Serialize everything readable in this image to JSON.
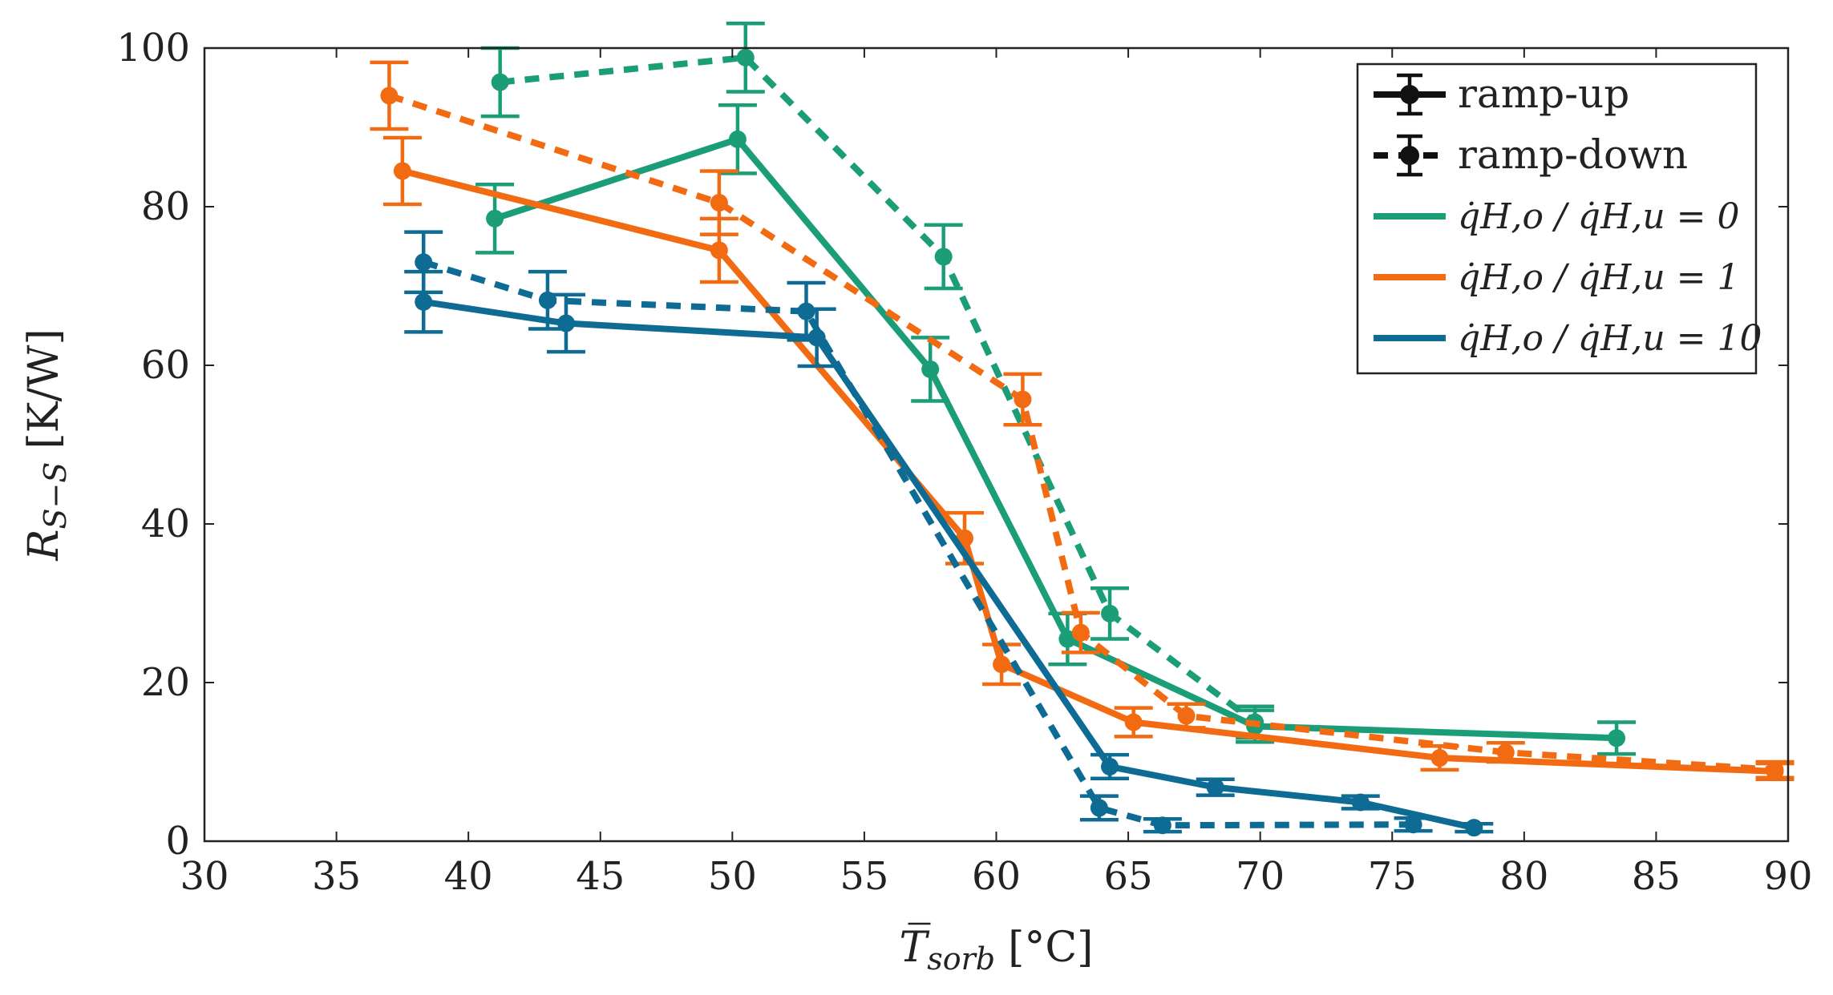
{
  "chart_data": {
    "type": "line",
    "title": "",
    "xlabel": {
      "base": "T",
      "sub": "sorb",
      "unit": "[°C]"
    },
    "ylabel": {
      "base": "R",
      "sub": "S−S",
      "unit": "[K/W]"
    },
    "xlim": [
      30,
      90
    ],
    "ylim": [
      0,
      100
    ],
    "xticks": [
      30,
      35,
      40,
      45,
      50,
      55,
      60,
      65,
      70,
      75,
      80,
      85,
      90
    ],
    "yticks": [
      0,
      20,
      40,
      60,
      80,
      100
    ],
    "grid": false,
    "legend_position": "top-right",
    "legend": {
      "styles": [
        {
          "label": "ramp-up",
          "dashed": false
        },
        {
          "label": "ramp-down",
          "dashed": true
        }
      ],
      "ratio_prefix": "q̇H,o / q̇H,u = ",
      "colors": [
        {
          "value": "0",
          "color": "#1b9e77"
        },
        {
          "value": "1",
          "color": "#f26b12"
        },
        {
          "value": "10",
          "color": "#0e6b94"
        }
      ]
    },
    "series": [
      {
        "name": "ramp-up, ratio 0",
        "color": "#1b9e77",
        "dashed": false,
        "points": [
          [
            41,
            78.5,
            4.3
          ],
          [
            50.2,
            88.5,
            4.3
          ],
          [
            57.5,
            59.5,
            4
          ],
          [
            62.7,
            25.5,
            3.2
          ],
          [
            69.8,
            14.5,
            2
          ],
          [
            83.5,
            13,
            2
          ]
        ]
      },
      {
        "name": "ramp-down, ratio 0",
        "color": "#1b9e77",
        "dashed": true,
        "points": [
          [
            41.2,
            95.7,
            4.3
          ],
          [
            50.5,
            98.8,
            4.3
          ],
          [
            58,
            73.7,
            4
          ],
          [
            64.3,
            28.7,
            3.2
          ],
          [
            69.8,
            15,
            2
          ]
        ]
      },
      {
        "name": "ramp-up, ratio 1",
        "color": "#f26b12",
        "dashed": false,
        "points": [
          [
            37.5,
            84.5,
            4.2
          ],
          [
            49.5,
            74.5,
            4
          ],
          [
            58.8,
            38.2,
            3.2
          ],
          [
            60.2,
            22.3,
            2.5
          ],
          [
            65.2,
            15,
            1.8
          ],
          [
            76.8,
            10.5,
            1.5
          ],
          [
            89.5,
            8.8,
            1
          ]
        ]
      },
      {
        "name": "ramp-down, ratio 1",
        "color": "#f26b12",
        "dashed": true,
        "points": [
          [
            37,
            94,
            4.2
          ],
          [
            49.5,
            80.5,
            4
          ],
          [
            61,
            55.7,
            3.2
          ],
          [
            63.2,
            26.3,
            2.5
          ],
          [
            67.2,
            15.8,
            1.5
          ],
          [
            79.3,
            11.2,
            1.2
          ],
          [
            89.5,
            9,
            1
          ]
        ]
      },
      {
        "name": "ramp-up, ratio 10",
        "color": "#0e6b94",
        "dashed": false,
        "points": [
          [
            38.3,
            68,
            3.8
          ],
          [
            43.7,
            65.3,
            3.6
          ],
          [
            53.2,
            63.5,
            3.6
          ],
          [
            64.3,
            9.4,
            1.5
          ],
          [
            68.3,
            6.8,
            1
          ],
          [
            73.8,
            4.9,
            0.8
          ],
          [
            78.1,
            1.7,
            0.5
          ]
        ]
      },
      {
        "name": "ramp-down, ratio 10",
        "color": "#0e6b94",
        "dashed": true,
        "points": [
          [
            38.3,
            73,
            3.8
          ],
          [
            43,
            68.2,
            3.6
          ],
          [
            52.8,
            66.8,
            3.6
          ],
          [
            63.9,
            4.2,
            1.5
          ],
          [
            66.3,
            2,
            0.8
          ],
          [
            75.8,
            2.1,
            0.8
          ]
        ]
      }
    ]
  }
}
